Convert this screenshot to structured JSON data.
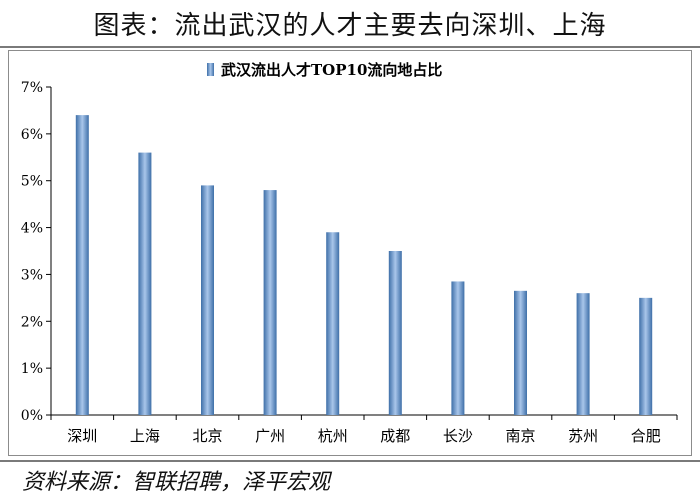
{
  "figure_title": "图表：流出武汉的人才主要去向深圳、上海",
  "source_note": "资料来源：智联招聘，泽平宏观",
  "colors": {
    "bar_dark": "#3e6fa8",
    "bar_light": "#a9c6ea",
    "axis": "#000000"
  },
  "chart_data": {
    "type": "bar",
    "title": "",
    "legend": {
      "labels": [
        "武汉流出人才TOP10流向地占比"
      ],
      "placement": "top-center"
    },
    "categories": [
      "深圳",
      "上海",
      "北京",
      "广州",
      "杭州",
      "成都",
      "长沙",
      "南京",
      "苏州",
      "合肥"
    ],
    "series": [
      {
        "name": "武汉流出人才TOP10流向地占比",
        "values": [
          6.4,
          5.6,
          4.9,
          4.8,
          3.9,
          3.5,
          2.85,
          2.65,
          2.6,
          2.5
        ]
      }
    ],
    "xlabel": "",
    "ylabel": "",
    "ylim": [
      0,
      7
    ],
    "yticks": [
      "0%",
      "1%",
      "2%",
      "3%",
      "4%",
      "5%",
      "6%",
      "7%"
    ],
    "grid": false
  }
}
